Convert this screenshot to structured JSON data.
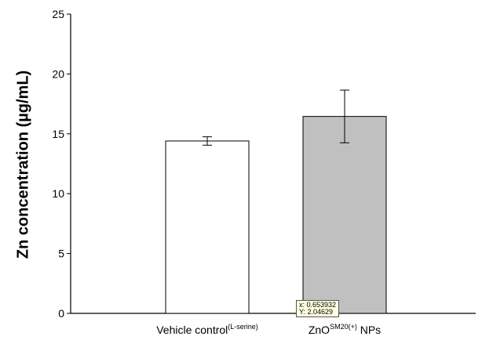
{
  "chart_data": {
    "type": "bar",
    "title": "",
    "xlabel": "",
    "ylabel": "Zn concentration (µg/mL)",
    "ylim": [
      0,
      25
    ],
    "yticks": [
      "0",
      "5",
      "10",
      "15",
      "20",
      "25"
    ],
    "categories": [
      {
        "main": "Vehicle control",
        "sup": "(L-serine)",
        "after": ""
      },
      {
        "main": "ZnO",
        "sup": "SM20(+)",
        "after": " NPs"
      }
    ],
    "values": [
      14.4,
      16.45
    ],
    "error": [
      0.35,
      2.2
    ],
    "bar_colors": [
      "#ffffff",
      "#c0c0c0"
    ],
    "grid": false
  },
  "tooltip": {
    "x_text": "x: 0.653932",
    "y_text": "Y: 2.04629"
  }
}
